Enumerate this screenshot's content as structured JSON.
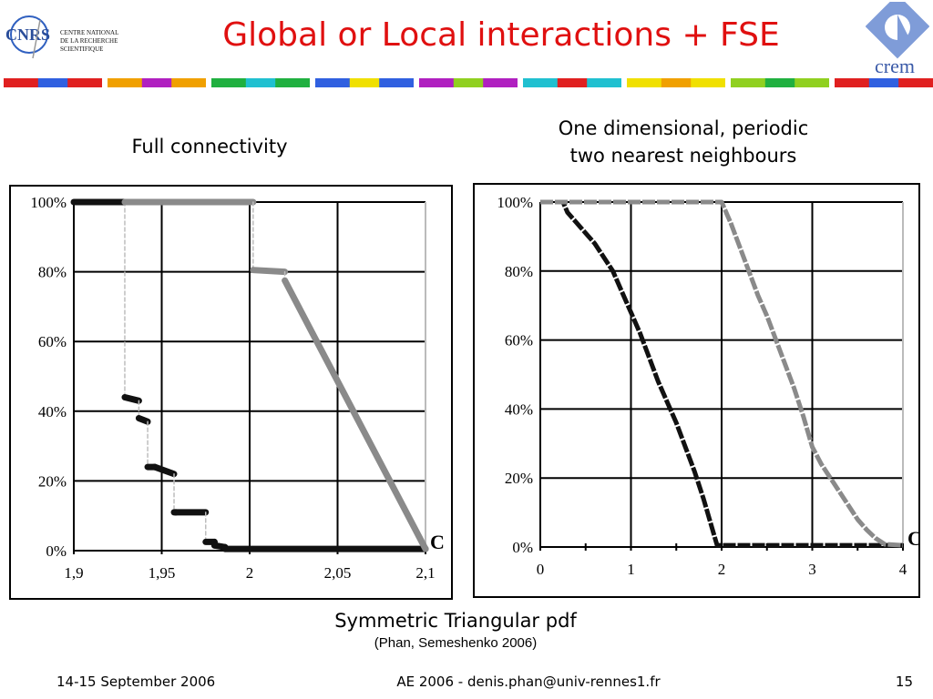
{
  "slide": {
    "title": "Global or Local interactions + FSE",
    "cnrs_logo_text": "CNRS",
    "cnrs_org_lines": [
      "CENTRE NATIONAL",
      "DE LA RECHERCHE",
      "SCIENTIFIQUE"
    ],
    "crem_logo_text": "crem",
    "caption": "Symmetric Triangular pdf",
    "caption_sub": "(Phan, Semeshenko 2006)",
    "footer_date": "14-15 September 2006",
    "footer_conference": "AE 2006 - denis.phan@univ-rennes1.fr",
    "footer_page": "15",
    "colors": {
      "title": "#e01010",
      "black_series": "#111111",
      "gray_series": "#8a8a8a",
      "frame": "#000000"
    }
  },
  "chart_data": [
    {
      "type": "line",
      "title": "Full connectivity",
      "xlabel": "",
      "ylabel": "",
      "xlim": [
        1.9,
        2.1
      ],
      "ylim": [
        0,
        100
      ],
      "x_ticks": [
        "1,9",
        "1,95",
        "2",
        "2,05",
        "2,1"
      ],
      "x_tick_values": [
        1.9,
        1.95,
        2.0,
        2.05,
        2.1
      ],
      "y_ticks": [
        "0%",
        "20%",
        "40%",
        "60%",
        "80%",
        "100%"
      ],
      "y_tick_values": [
        0,
        20,
        40,
        60,
        80,
        100
      ],
      "grid": true,
      "annotation": "C",
      "series": [
        {
          "color": "#111111",
          "x": [
            1.9,
            1.929,
            1.929,
            1.937,
            1.937,
            1.942,
            1.942,
            1.946,
            1.946,
            1.957,
            1.957,
            1.958,
            1.958,
            1.975,
            1.975,
            1.98,
            1.98,
            1.986,
            1.986,
            2.1
          ],
          "values": [
            100,
            100,
            44,
            43,
            38,
            37,
            24,
            24,
            24,
            22,
            11,
            11,
            11,
            11,
            2.5,
            2.5,
            1.5,
            1,
            0.5,
            0.5
          ]
        },
        {
          "color": "#8a8a8a",
          "x": [
            1.929,
            2.002,
            2.002,
            2.02,
            2.02,
            2.1
          ],
          "values": [
            100,
            100,
            80.5,
            80,
            77.5,
            0.5
          ]
        }
      ]
    },
    {
      "type": "line",
      "title": "One dimensional, periodic\ntwo nearest neighbours",
      "xlabel": "",
      "ylabel": "",
      "xlim": [
        0,
        4
      ],
      "ylim": [
        0,
        100
      ],
      "x_ticks": [
        "0",
        "1",
        "2",
        "3",
        "4"
      ],
      "x_tick_values": [
        0,
        1,
        2,
        3,
        4
      ],
      "y_ticks": [
        "0%",
        "20%",
        "40%",
        "60%",
        "80%",
        "100%"
      ],
      "y_tick_values": [
        0,
        20,
        40,
        60,
        80,
        100
      ],
      "grid": true,
      "annotation": "C",
      "series": [
        {
          "color": "#111111",
          "x": [
            0,
            0.25,
            0.3,
            0.4,
            0.5,
            0.6,
            0.7,
            0.8,
            0.9,
            1.0,
            1.1,
            1.2,
            1.3,
            1.4,
            1.5,
            1.6,
            1.7,
            1.8,
            1.9,
            1.95,
            4.0
          ],
          "values": [
            100,
            100,
            97,
            94,
            91,
            88,
            84,
            80,
            74,
            68,
            62,
            55,
            48,
            42,
            36,
            29,
            22,
            14,
            5,
            0.5,
            0.5
          ]
        },
        {
          "color": "#8a8a8a",
          "x": [
            0,
            2.0,
            2.1,
            2.2,
            2.3,
            2.4,
            2.5,
            2.6,
            2.7,
            2.8,
            2.9,
            3.0,
            3.1,
            3.2,
            3.3,
            3.4,
            3.5,
            3.6,
            3.7,
            3.8,
            4.0
          ],
          "values": [
            100,
            100,
            94,
            87,
            80,
            73,
            67,
            60,
            53,
            46,
            38,
            29,
            24,
            20,
            16,
            12,
            8,
            5,
            2.5,
            0.8,
            0.5
          ]
        }
      ]
    }
  ]
}
